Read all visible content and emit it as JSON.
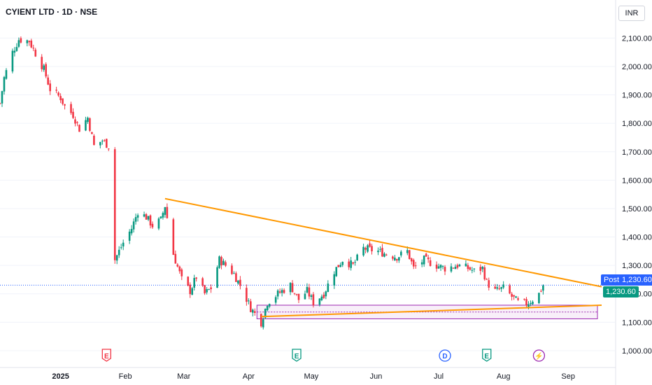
{
  "header": {
    "title": "CYIENT LTD · 1D · NSE",
    "currency": "INR"
  },
  "price_tags": {
    "post_label": "Post",
    "post_price": "1,230.60",
    "last_price": "1,230.60"
  },
  "colors": {
    "up": "#089981",
    "down": "#f23645",
    "trendline": "#ff9800",
    "box_border": "#9c27b0",
    "box_fill": "#f3e5f5",
    "last_line": "#2962ff"
  },
  "events": [
    {
      "icon": "earnings-icon",
      "letter": "E",
      "date": "2025-01-23",
      "color": "#f23645"
    },
    {
      "icon": "earnings-icon",
      "letter": "E",
      "date": "2025-04-24",
      "color": "#089981"
    },
    {
      "icon": "dividend-icon",
      "letter": "D",
      "date": "2025-07-04",
      "color": "#2962ff"
    },
    {
      "icon": "earnings-icon",
      "letter": "E",
      "date": "2025-07-24",
      "color": "#089981"
    },
    {
      "icon": "split-icon",
      "letter": "⚡",
      "date": "2025-08-18",
      "color": "#9c27b0"
    }
  ],
  "chart_data": {
    "type": "candlestick",
    "title": "CYIENT LTD · 1D · NSE",
    "y_axis": {
      "ticks": [
        "2,100.00",
        "2,000.00",
        "1,900.00",
        "1,800.00",
        "1,700.00",
        "1,600.00",
        "1,500.00",
        "1,400.00",
        "1,300.00",
        "1,200.00",
        "1,100.00",
        "1,000.00"
      ],
      "ylim": [
        990,
        2160
      ]
    },
    "x_axis": {
      "ticks": [
        {
          "label": "2025",
          "date": "2025-01-01",
          "bold": true
        },
        {
          "label": "Feb",
          "date": "2025-02-01"
        },
        {
          "label": "Mar",
          "date": "2025-03-01"
        },
        {
          "label": "Apr",
          "date": "2025-04-01"
        },
        {
          "label": "May",
          "date": "2025-05-01"
        },
        {
          "label": "Jun",
          "date": "2025-06-01"
        },
        {
          "label": "Jul",
          "date": "2025-07-01"
        },
        {
          "label": "Aug",
          "date": "2025-08-01"
        },
        {
          "label": "Sep",
          "date": "2025-09-01"
        }
      ],
      "range": [
        "2024-12-03",
        "2025-09-17"
      ]
    },
    "last_price": 1230.6,
    "series": [
      {
        "name": "CYIENT",
        "keypoints": [
          [
            "2024-12-03",
            1870
          ],
          [
            "2024-12-05",
            1960
          ],
          [
            "2024-12-09",
            2050
          ],
          [
            "2024-12-12",
            2095
          ],
          [
            "2024-12-17",
            2090
          ],
          [
            "2024-12-19",
            2060
          ],
          [
            "2024-12-24",
            1990
          ],
          [
            "2024-12-27",
            1920
          ],
          [
            "2025-01-01",
            1890
          ],
          [
            "2025-01-03",
            1860
          ],
          [
            "2025-01-07",
            1830
          ],
          [
            "2025-01-10",
            1780
          ],
          [
            "2025-01-14",
            1820
          ],
          [
            "2025-01-17",
            1720
          ],
          [
            "2025-01-21",
            1740
          ],
          [
            "2025-01-24",
            1720
          ],
          [
            "2025-01-27",
            1320
          ],
          [
            "2025-01-31",
            1380
          ],
          [
            "2025-02-04",
            1430
          ],
          [
            "2025-02-07",
            1490
          ],
          [
            "2025-02-11",
            1470
          ],
          [
            "2025-02-14",
            1440
          ],
          [
            "2025-02-18",
            1460
          ],
          [
            "2025-02-20",
            1510
          ],
          [
            "2025-02-24",
            1340
          ],
          [
            "2025-02-28",
            1250
          ],
          [
            "2025-03-04",
            1210
          ],
          [
            "2025-03-07",
            1260
          ],
          [
            "2025-03-11",
            1200
          ],
          [
            "2025-03-14",
            1220
          ],
          [
            "2025-03-18",
            1320
          ],
          [
            "2025-03-21",
            1300
          ],
          [
            "2025-03-25",
            1270
          ],
          [
            "2025-03-28",
            1230
          ],
          [
            "2025-04-02",
            1150
          ],
          [
            "2025-04-07",
            1100
          ],
          [
            "2025-04-10",
            1170
          ],
          [
            "2025-04-15",
            1200
          ],
          [
            "2025-04-21",
            1230
          ],
          [
            "2025-04-25",
            1180
          ],
          [
            "2025-04-29",
            1210
          ],
          [
            "2025-05-02",
            1170
          ],
          [
            "2025-05-07",
            1200
          ],
          [
            "2025-05-12",
            1280
          ],
          [
            "2025-05-16",
            1320
          ],
          [
            "2025-05-21",
            1300
          ],
          [
            "2025-05-26",
            1360
          ],
          [
            "2025-06-02",
            1350
          ],
          [
            "2025-06-06",
            1340
          ],
          [
            "2025-06-11",
            1330
          ],
          [
            "2025-06-16",
            1350
          ],
          [
            "2025-06-19",
            1290
          ],
          [
            "2025-06-24",
            1320
          ],
          [
            "2025-06-30",
            1300
          ],
          [
            "2025-07-04",
            1290
          ],
          [
            "2025-07-10",
            1300
          ],
          [
            "2025-07-15",
            1290
          ],
          [
            "2025-07-18",
            1280
          ],
          [
            "2025-07-22",
            1290
          ],
          [
            "2025-07-24",
            1240
          ],
          [
            "2025-07-28",
            1210
          ],
          [
            "2025-08-01",
            1220
          ],
          [
            "2025-08-05",
            1190
          ],
          [
            "2025-08-08",
            1170
          ],
          [
            "2025-08-12",
            1165
          ],
          [
            "2025-08-15",
            1180
          ],
          [
            "2025-08-18",
            1200
          ],
          [
            "2025-08-20",
            1230
          ]
        ]
      }
    ],
    "trendlines": [
      {
        "name": "upper",
        "from": [
          "2025-02-20",
          1535
        ],
        "to": [
          "2025-09-17",
          1225
        ]
      },
      {
        "name": "lower",
        "from": [
          "2025-04-07",
          1120
        ],
        "to": [
          "2025-09-17",
          1160
        ]
      }
    ],
    "rectangle": {
      "from_date": "2025-04-05",
      "to_date": "2025-09-15",
      "y_low": 1112,
      "y_high": 1160
    },
    "grid": true
  }
}
